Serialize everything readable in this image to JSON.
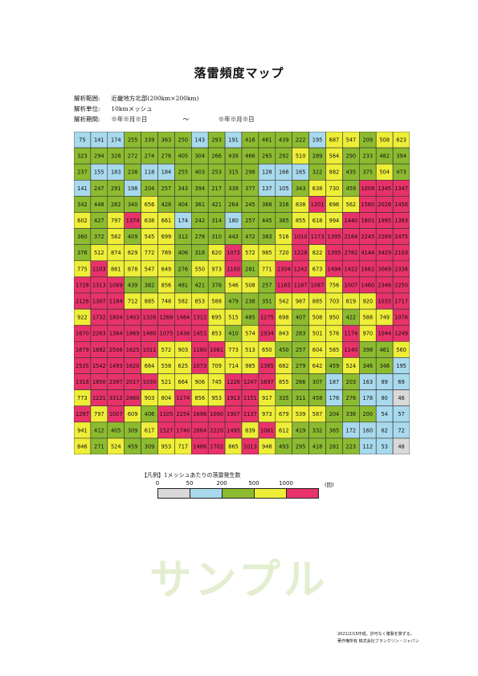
{
  "title": "落雷頻度マップ",
  "meta": {
    "range_label": "解析範囲:",
    "range_value": "近畿地方北部(200km×200km)",
    "unit_label": "解析単位:",
    "unit_value": "10kmメッシュ",
    "period_label": "解析期間:",
    "period_start": "※年※月※日",
    "period_sep": "〜",
    "period_end": "※年※月※日"
  },
  "legend": {
    "title": "【凡例】1メッシュあたりの落雷発生数",
    "ticks": [
      "0",
      "50",
      "200",
      "500",
      "1000"
    ],
    "unit": "(回)",
    "bins": [
      {
        "min": 0,
        "max": 50,
        "color": "#d9d9d9"
      },
      {
        "min": 50,
        "max": 200,
        "color": "#a8d9ec"
      },
      {
        "min": 200,
        "max": 500,
        "color": "#8dbb30"
      },
      {
        "min": 500,
        "max": 1000,
        "color": "#eeee38"
      },
      {
        "min": 1000,
        "max": null,
        "color": "#e8326a"
      }
    ]
  },
  "watermark": "サンプル",
  "footer": {
    "line1": "2021/2/15作成。許可なく複製を禁ずる。",
    "line2": "著作権所有 株式会社フランクリン・ジャパン"
  },
  "chart_data": {
    "type": "heatmap",
    "rows": 20,
    "cols": 20,
    "values": [
      [
        75,
        141,
        174,
        255,
        339,
        363,
        250,
        143,
        293,
        191,
        416,
        461,
        439,
        222,
        195,
        687,
        547,
        209,
        508,
        623
      ],
      [
        323,
        294,
        328,
        272,
        274,
        276,
        405,
        304,
        266,
        439,
        466,
        265,
        292,
        510,
        289,
        564,
        290,
        233,
        482,
        394
      ],
      [
        237,
        155,
        183,
        238,
        118,
        184,
        255,
        403,
        253,
        315,
        298,
        128,
        166,
        165,
        322,
        882,
        435,
        375,
        504,
        473
      ],
      [
        141,
        247,
        291,
        198,
        204,
        257,
        343,
        394,
        217,
        339,
        377,
        137,
        105,
        343,
        638,
        730,
        459,
        1008,
        1345,
        1347
      ],
      [
        342,
        448,
        282,
        340,
        656,
        428,
        404,
        361,
        421,
        264,
        245,
        368,
        316,
        838,
        1201,
        696,
        562,
        1560,
        2026,
        1456
      ],
      [
        602,
        427,
        797,
        1374,
        638,
        661,
        174,
        242,
        314,
        180,
        257,
        445,
        385,
        855,
        618,
        994,
        1440,
        1801,
        1995,
        1393
      ],
      [
        360,
        372,
        582,
        409,
        545,
        699,
        312,
        278,
        310,
        443,
        472,
        383,
        516,
        1010,
        1173,
        1395,
        2184,
        2245,
        2289,
        2475
      ],
      [
        376,
        512,
        874,
        629,
        772,
        789,
        406,
        318,
        620,
        1072,
        572,
        985,
        720,
        1228,
        822,
        1395,
        2782,
        4144,
        3429,
        2103
      ],
      [
        775,
        1103,
        881,
        878,
        547,
        649,
        276,
        550,
        973,
        1100,
        281,
        771,
        1304,
        1242,
        673,
        1494,
        1422,
        1661,
        3069,
        2336
      ],
      [
        1728,
        1313,
        1089,
        439,
        382,
        856,
        481,
        421,
        376,
        546,
        508,
        257,
        1165,
        1187,
        1087,
        756,
        1007,
        1460,
        2346,
        2250
      ],
      [
        2126,
        1307,
        1164,
        712,
        885,
        748,
        582,
        653,
        588,
        479,
        238,
        351,
        542,
        987,
        885,
        703,
        819,
        920,
        1035,
        1717
      ],
      [
        922,
        1732,
        1804,
        1403,
        1326,
        1268,
        1464,
        1312,
        695,
        515,
        485,
        1275,
        698,
        407,
        508,
        950,
        422,
        588,
        749,
        1076
      ],
      [
        1670,
        2263,
        1384,
        1869,
        1480,
        1075,
        1438,
        1451,
        853,
        410,
        574,
        1934,
        843,
        283,
        501,
        576,
        1174,
        970,
        1044,
        1249
      ],
      [
        1679,
        1892,
        2506,
        1625,
        1011,
        572,
        903,
        1180,
        1081,
        773,
        513,
        650,
        450,
        257,
        604,
        585,
        1140,
        398,
        461,
        560
      ],
      [
        2535,
        1542,
        1493,
        1620,
        664,
        558,
        625,
        1073,
        709,
        714,
        985,
        1385,
        682,
        279,
        642,
        459,
        524,
        346,
        346,
        195
      ],
      [
        1318,
        1850,
        2397,
        2017,
        1030,
        521,
        664,
        906,
        745,
        1226,
        1247,
        1697,
        855,
        266,
        307,
        187,
        203,
        163,
        89,
        69
      ],
      [
        773,
        1221,
        3312,
        2860,
        903,
        804,
        1174,
        856,
        953,
        1913,
        1151,
        917,
        335,
        311,
        458,
        176,
        276,
        178,
        80,
        46
      ],
      [
        1297,
        797,
        1007,
        609,
        406,
        1105,
        2254,
        1698,
        1090,
        1907,
        1137,
        973,
        679,
        539,
        587,
        204,
        336,
        200,
        54,
        57
      ],
      [
        941,
        412,
        405,
        309,
        617,
        1527,
        1740,
        2864,
        2220,
        1495,
        839,
        1061,
        612,
        419,
        332,
        365,
        172,
        160,
        62,
        72
      ],
      [
        846,
        271,
        524,
        459,
        309,
        953,
        717,
        1486,
        1702,
        865,
        1013,
        948,
        493,
        295,
        418,
        281,
        223,
        112,
        53,
        48
      ]
    ]
  }
}
